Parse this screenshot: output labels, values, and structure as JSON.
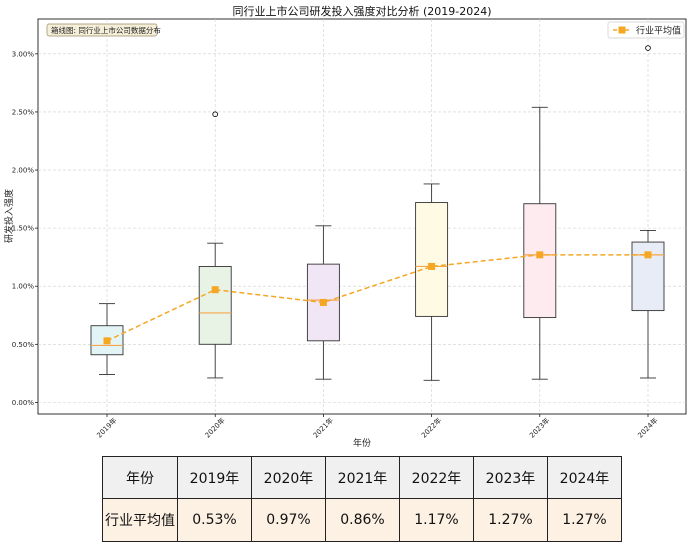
{
  "chart_data": {
    "type": "box",
    "title": "同行业上市公司研发投入强度对比分析 (2019-2024)",
    "xlabel": "年份",
    "ylabel": "研发投入强度",
    "note": "箱线图: 同行业上市公司数据分布",
    "legend": {
      "label": "行业平均值",
      "position": "top-right"
    },
    "categories": [
      "2019年",
      "2020年",
      "2021年",
      "2022年",
      "2023年",
      "2024年"
    ],
    "ylim": [
      -0.1,
      3.3
    ],
    "yticks": [
      0.0,
      0.5,
      1.0,
      1.5,
      2.0,
      2.5,
      3.0
    ],
    "ytick_labels": [
      "0.00%",
      "0.50%",
      "1.00%",
      "1.50%",
      "2.00%",
      "2.50%",
      "3.00%"
    ],
    "grid": true,
    "boxes": [
      {
        "year": "2019年",
        "whisker_low": 0.24,
        "q1": 0.41,
        "median": 0.49,
        "q3": 0.66,
        "whisker_high": 0.85,
        "outliers": [],
        "fill": "#e3f4f6"
      },
      {
        "year": "2020年",
        "whisker_low": 0.21,
        "q1": 0.5,
        "median": 0.77,
        "q3": 1.17,
        "whisker_high": 1.37,
        "outliers": [
          2.48
        ],
        "fill": "#e8f3e6"
      },
      {
        "year": "2021年",
        "whisker_low": 0.2,
        "q1": 0.53,
        "median": 0.88,
        "q3": 1.19,
        "whisker_high": 1.52,
        "outliers": [],
        "fill": "#f1e6f5"
      },
      {
        "year": "2022年",
        "whisker_low": 0.19,
        "q1": 0.74,
        "median": 1.17,
        "q3": 1.72,
        "whisker_high": 1.88,
        "outliers": [],
        "fill": "#fefae3"
      },
      {
        "year": "2023年",
        "whisker_low": 0.2,
        "q1": 0.73,
        "median": 1.27,
        "q3": 1.71,
        "whisker_high": 2.54,
        "outliers": [],
        "fill": "#fdebef"
      },
      {
        "year": "2024年",
        "whisker_low": 0.21,
        "q1": 0.79,
        "median": 1.27,
        "q3": 1.38,
        "whisker_high": 1.48,
        "outliers": [
          3.05
        ],
        "fill": "#e8ecf6"
      }
    ],
    "series": [
      {
        "name": "行业平均值",
        "values": [
          0.53,
          0.97,
          0.86,
          1.17,
          1.27,
          1.27
        ],
        "color": "#f5a623"
      }
    ]
  },
  "table": {
    "header_label": "年份",
    "row_label": "行业平均值",
    "years": [
      "2019年",
      "2020年",
      "2021年",
      "2022年",
      "2023年",
      "2024年"
    ],
    "values": [
      "0.53%",
      "0.97%",
      "0.86%",
      "1.17%",
      "1.27%",
      "1.27%"
    ]
  }
}
